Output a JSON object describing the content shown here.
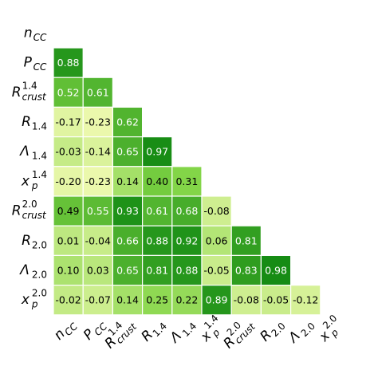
{
  "chart_data": {
    "type": "heatmap",
    "labels": [
      {
        "base": "n",
        "sub": "CC"
      },
      {
        "base": "P",
        "sub": "CC"
      },
      {
        "base": "R",
        "sub": "crust",
        "sup": "1.4"
      },
      {
        "base": "R",
        "sub": "1.4"
      },
      {
        "base": "Λ",
        "sub": "1.4"
      },
      {
        "base": "x",
        "sub": "p",
        "sup": "1.4"
      },
      {
        "base": "R",
        "sub": "crust",
        "sup": "2.0"
      },
      {
        "base": "R",
        "sub": "2.0"
      },
      {
        "base": "Λ",
        "sub": "2.0"
      },
      {
        "base": "x",
        "sub": "p",
        "sup": "2.0"
      }
    ],
    "values": [
      [],
      [
        0.88
      ],
      [
        0.52,
        0.61
      ],
      [
        -0.17,
        -0.23,
        0.62
      ],
      [
        -0.03,
        -0.14,
        0.65,
        0.97
      ],
      [
        -0.2,
        -0.23,
        0.14,
        0.4,
        0.31
      ],
      [
        0.49,
        0.55,
        0.93,
        0.61,
        0.68,
        -0.08
      ],
      [
        0.01,
        -0.04,
        0.66,
        0.88,
        0.92,
        0.06,
        0.81
      ],
      [
        0.1,
        0.03,
        0.65,
        0.81,
        0.88,
        -0.05,
        0.83,
        0.98
      ],
      [
        -0.02,
        -0.07,
        0.14,
        0.25,
        0.22,
        0.89,
        -0.08,
        -0.05,
        -0.12
      ]
    ],
    "value_labels": [
      [],
      [
        "0.88"
      ],
      [
        "0.52",
        "0.61"
      ],
      [
        "-0.17",
        "-0.23",
        "0.62"
      ],
      [
        "-0.03",
        "-0.14",
        "0.65",
        "0.97"
      ],
      [
        "-0.20",
        "-0.23",
        "0.14",
        "0.40",
        "0.31"
      ],
      [
        "0.49",
        "0.55",
        "0.93",
        "0.61",
        "0.68",
        "-0.08"
      ],
      [
        "0.01",
        "-0.04",
        "0.66",
        "0.88",
        "0.92",
        "0.06",
        "0.81"
      ],
      [
        "0.10",
        "0.03",
        "0.65",
        "0.81",
        "0.88",
        "-0.05",
        "0.83",
        "0.98"
      ],
      [
        "-0.02",
        "-0.07",
        "0.14",
        "0.25",
        "0.22",
        "0.89",
        "-0.08",
        "-0.05",
        "-0.12"
      ]
    ],
    "zlim": [
      -1,
      1
    ],
    "colormap": [
      "#f46d43",
      "#ffffbf",
      "#7fd344",
      "#138a13"
    ]
  }
}
